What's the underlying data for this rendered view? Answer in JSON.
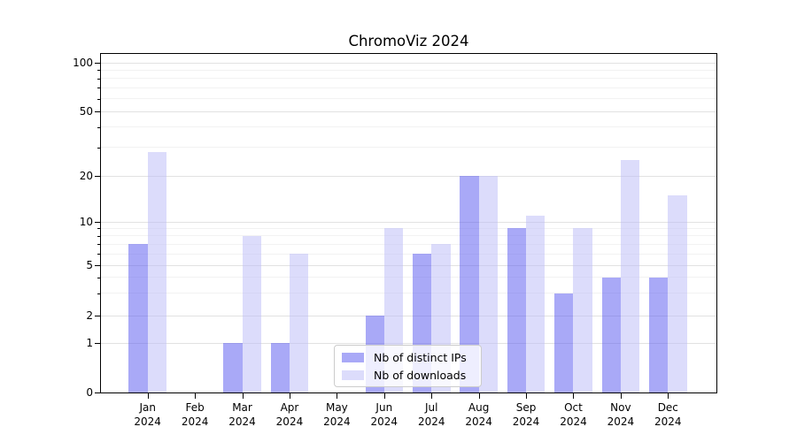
{
  "title": "ChromoViz 2024",
  "chart_data": {
    "type": "bar",
    "title": "ChromoViz 2024",
    "categories": [
      "Jan 2024",
      "Feb 2024",
      "Mar 2024",
      "Apr 2024",
      "May 2024",
      "Jun 2024",
      "Jul 2024",
      "Aug 2024",
      "Sep 2024",
      "Oct 2024",
      "Nov 2024",
      "Dec 2024"
    ],
    "series": [
      {
        "name": "Nb of distinct IPs",
        "color": "#a9a9f7",
        "values": [
          7,
          0,
          1,
          1,
          0,
          2,
          6,
          20,
          9,
          3,
          4,
          4
        ]
      },
      {
        "name": "Nb of downloads",
        "color": "#dcdcfb",
        "values": [
          28,
          0,
          8,
          6,
          0,
          9,
          7,
          20,
          11,
          9,
          25,
          15
        ]
      }
    ],
    "yscale": "symlog",
    "ylim": [
      0,
      100
    ],
    "yticks": [
      0,
      1,
      2,
      5,
      10,
      20,
      50,
      100
    ],
    "minor_yticks": [
      3,
      4,
      6,
      7,
      8,
      9,
      30,
      40,
      60,
      70,
      80,
      90
    ],
    "grid": "horizontal-major-and-minor",
    "legend_position": "lower center",
    "axis_color": "#000000",
    "major_grid_color": "#e2e2e2",
    "minor_grid_color": "#f2f2f2"
  }
}
